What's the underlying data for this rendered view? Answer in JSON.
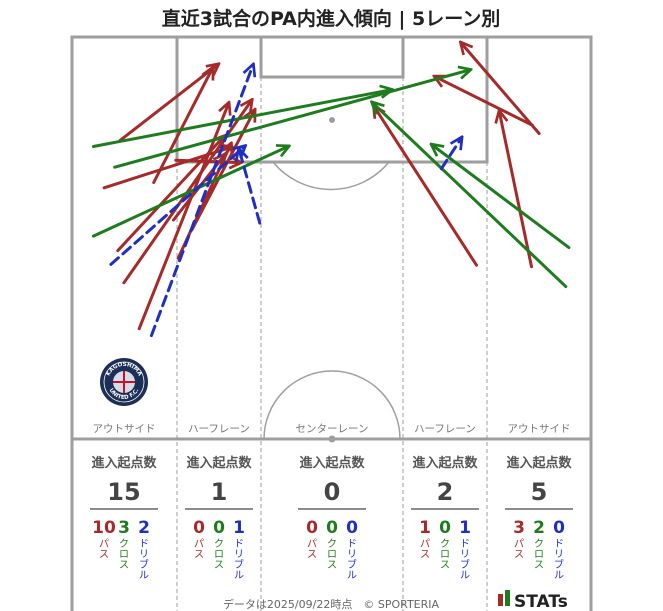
{
  "title": "直近3試合のPA内進入傾向 | 5レーン別",
  "lanes": [
    {
      "name": "アウトサイド",
      "header": "進入起点数",
      "total": "15",
      "pass": "10",
      "cross": "3",
      "dribble": "2"
    },
    {
      "name": "ハーフレーン",
      "header": "進入起点数",
      "total": "1",
      "pass": "0",
      "cross": "0",
      "dribble": "1"
    },
    {
      "name": "センターレーン",
      "header": "進入起点数",
      "total": "0",
      "pass": "0",
      "cross": "0",
      "dribble": "0"
    },
    {
      "name": "ハーフレーン",
      "header": "進入起点数",
      "total": "2",
      "pass": "1",
      "cross": "0",
      "dribble": "1"
    },
    {
      "name": "アウトサイド",
      "header": "進入起点数",
      "total": "5",
      "pass": "3",
      "cross": "2",
      "dribble": "0"
    }
  ],
  "type_labels": {
    "pass": "パス",
    "cross": "クロス",
    "dribble": "ドリブル"
  },
  "colors": {
    "pass": "#a52a2a",
    "cross": "#1e7b1e",
    "dribble": "#1f2fbf",
    "pitch_line": "#9e9e9e"
  },
  "footer": "データは2025/09/22時点　© SPORTERIA",
  "brand": "STATs",
  "logo": {
    "top_text": "KAGOSHIMA",
    "bottom_text": "UNITED F.C."
  },
  "chart_data": {
    "type": "pitch_arrows",
    "units": "pitch metres: x across (0-68), y from goal line (0-52.5)",
    "lanes": [
      "アウトサイド",
      "ハーフレーン",
      "センターレーン",
      "ハーフレーン",
      "アウトサイド"
    ],
    "arrows": [
      {
        "kind": "pass",
        "x1": 8.8,
        "y1": 38.1,
        "x2": 20.5,
        "y2": 8.7
      },
      {
        "kind": "pass",
        "x1": 6.8,
        "y1": 32.1,
        "x2": 23.5,
        "y2": 8.3
      },
      {
        "kind": "pass",
        "x1": 6.0,
        "y1": 27.9,
        "x2": 19.9,
        "y2": 13.0
      },
      {
        "kind": "pass",
        "x1": 4.2,
        "y1": 19.7,
        "x2": 20.8,
        "y2": 14.4
      },
      {
        "kind": "pass",
        "x1": 10.7,
        "y1": 19.0,
        "x2": 18.4,
        "y2": 4.1
      },
      {
        "kind": "pass",
        "x1": 6.3,
        "y1": 13.5,
        "x2": 19.1,
        "y2": 3.6
      },
      {
        "kind": "pass",
        "x1": 13.3,
        "y1": 23.9,
        "x2": 20.0,
        "y2": 15.4
      },
      {
        "kind": "pass",
        "x1": 15.7,
        "y1": 25.2,
        "x2": 23.9,
        "y2": 9.6
      },
      {
        "kind": "pass",
        "x1": 13.9,
        "y1": 28.9,
        "x2": 20.8,
        "y2": 14.0
      },
      {
        "kind": "pass",
        "x1": 13.6,
        "y1": 16.1,
        "x2": 22.0,
        "y2": 16.4
      },
      {
        "kind": "pass",
        "x1": 53.0,
        "y1": 29.8,
        "x2": 39.6,
        "y2": 9.1
      },
      {
        "kind": "pass",
        "x1": 60.2,
        "y1": 30.0,
        "x2": 56.0,
        "y2": 9.8
      },
      {
        "kind": "pass",
        "x1": 60.3,
        "y1": 11.5,
        "x2": 47.6,
        "y2": 5.2
      },
      {
        "kind": "pass",
        "x1": 61.2,
        "y1": 12.6,
        "x2": 51.0,
        "y2": 0.8
      },
      {
        "kind": "cross",
        "x1": 2.8,
        "y1": 14.3,
        "x2": 41.8,
        "y2": 6.9
      },
      {
        "kind": "cross",
        "x1": 5.6,
        "y1": 17.0,
        "x2": 52.1,
        "y2": 4.3
      },
      {
        "kind": "cross",
        "x1": 2.8,
        "y1": 26.0,
        "x2": 28.3,
        "y2": 14.3
      },
      {
        "kind": "cross",
        "x1": 65.1,
        "y1": 27.5,
        "x2": 47.2,
        "y2": 14.1
      },
      {
        "kind": "cross",
        "x1": 64.7,
        "y1": 32.6,
        "x2": 39.4,
        "y2": 8.6
      },
      {
        "kind": "dribble",
        "x1": 10.4,
        "y1": 39.0,
        "x2": 23.7,
        "y2": 3.7
      },
      {
        "kind": "dribble",
        "x1": 5.1,
        "y1": 29.7,
        "x2": 22.6,
        "y2": 14.3
      },
      {
        "kind": "dribble",
        "x1": 24.6,
        "y1": 24.3,
        "x2": 21.9,
        "y2": 14.7
      },
      {
        "kind": "dribble",
        "x1": 48.4,
        "y1": 17.2,
        "x2": 51.0,
        "y2": 13.2
      }
    ]
  }
}
